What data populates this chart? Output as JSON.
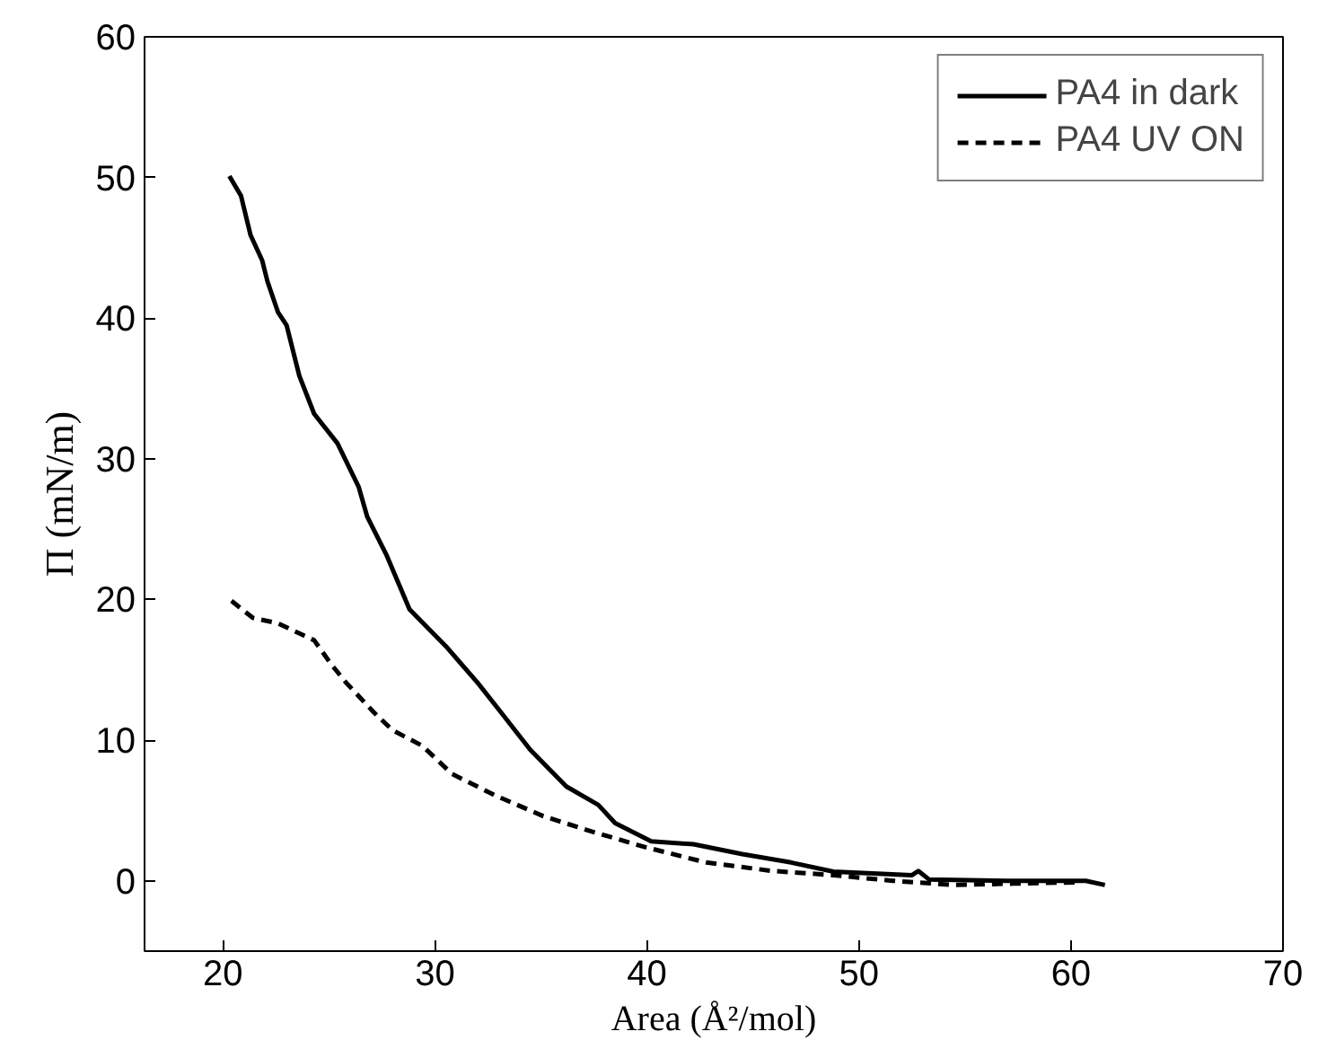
{
  "chart_data": {
    "type": "line",
    "xlabel": "Area (Å²/mol)",
    "ylabel": "Π (mN/m)",
    "xlim": [
      16.3,
      70
    ],
    "ylim": [
      -5,
      60
    ],
    "xticks": [
      20,
      30,
      40,
      50,
      60,
      70
    ],
    "yticks": [
      0,
      10,
      20,
      30,
      40,
      50,
      60
    ],
    "grid": false,
    "legend": "top right",
    "marker": "none",
    "series": [
      {
        "name": "PA4 in dark",
        "color": "#000000",
        "line_style": "solid",
        "x": [
          20.3,
          20.85,
          21.3,
          21.85,
          22.1,
          22.6,
          23.0,
          23.6,
          24.3,
          25.4,
          26.4,
          26.8,
          27.7,
          28.8,
          30.5,
          32.0,
          33.1,
          34.5,
          36.2,
          37.7,
          38.5,
          40.2,
          42.2,
          44.5,
          46.8,
          48.8,
          52.5,
          52.8,
          53.3,
          57.0,
          60.7,
          61.6
        ],
        "values": [
          50.1,
          48.7,
          45.9,
          44.1,
          42.6,
          40.4,
          39.5,
          35.9,
          33.2,
          31.1,
          28.0,
          25.9,
          23.2,
          19.3,
          16.7,
          14.1,
          12.0,
          9.3,
          6.7,
          5.4,
          4.1,
          2.8,
          2.6,
          1.9,
          1.3,
          0.65,
          0.4,
          0.7,
          0.1,
          0,
          0,
          -0.3
        ]
      },
      {
        "name": "PA4 UV ON",
        "color": "#000000",
        "line_style": "dashed",
        "x": [
          20.4,
          21.4,
          22.6,
          24.3,
          25.1,
          25.8,
          27.1,
          28.0,
          29.4,
          30.8,
          32.8,
          35.1,
          37.4,
          39.9,
          42.8,
          45.9,
          48.8,
          51.6,
          54.5,
          57.3,
          60.5
        ],
        "values": [
          19.9,
          18.7,
          18.3,
          17.1,
          15.4,
          14.1,
          12.0,
          10.7,
          9.6,
          7.6,
          6.1,
          4.6,
          3.5,
          2.4,
          1.3,
          0.7,
          0.4,
          0,
          -0.3,
          -0.2,
          -0.1
        ]
      }
    ]
  }
}
